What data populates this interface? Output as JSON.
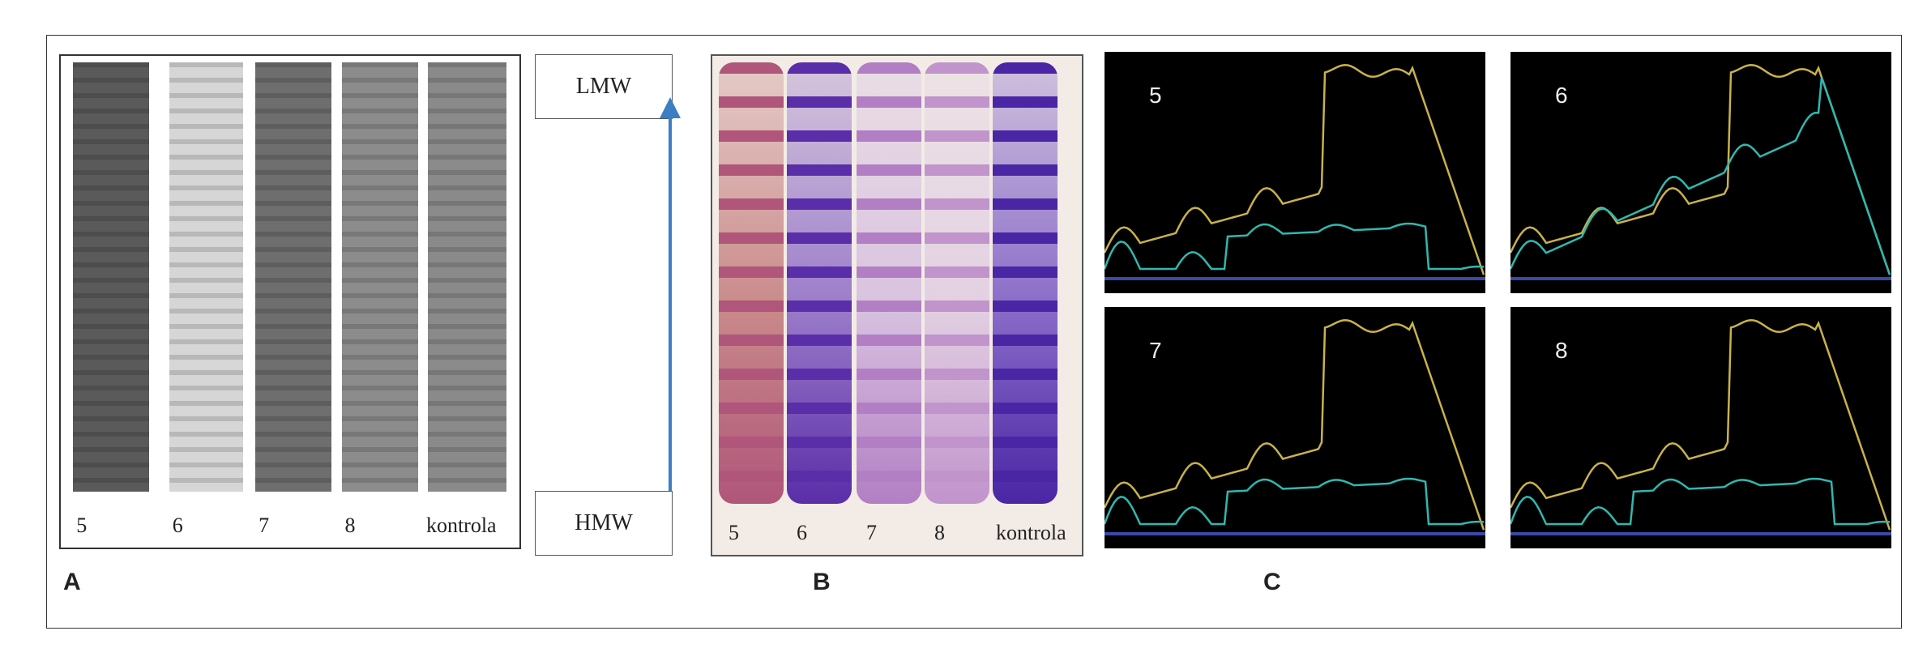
{
  "panel_labels": {
    "a": "A",
    "b": "B",
    "c": "C"
  },
  "gel_a": {
    "lanes": [
      {
        "label": "5",
        "color": "#5a5a5a"
      },
      {
        "label": "6",
        "color": "#d6d6d6"
      },
      {
        "label": "7",
        "color": "#6e6e6e"
      },
      {
        "label": "8",
        "color": "#8c8c8c"
      },
      {
        "label": "kontrola",
        "color": "#8a8a8a"
      }
    ]
  },
  "arrow": {
    "top_label": "LMW",
    "bottom_label": "HMW",
    "color": "#3a7fc4"
  },
  "gel_b": {
    "lanes": [
      {
        "label": "5",
        "base": "#c98a8a",
        "band": "#b0567a"
      },
      {
        "label": "6",
        "base": "#9b7cc9",
        "band": "#5a2ea8"
      },
      {
        "label": "7",
        "base": "#d8c2e0",
        "band": "#b27fc4"
      },
      {
        "label": "8",
        "base": "#e2d0e2",
        "band": "#c194cc"
      },
      {
        "label": "kontrola",
        "base": "#8a6cc9",
        "band": "#4a26a4"
      }
    ]
  },
  "densitometry": [
    {
      "label": "5"
    },
    {
      "label": "6"
    },
    {
      "label": "7"
    },
    {
      "label": "8"
    }
  ],
  "colors": {
    "trace_yellow": "#c9b24a",
    "trace_cyan": "#2fb8b0",
    "baseline": "#3a4aa8"
  }
}
